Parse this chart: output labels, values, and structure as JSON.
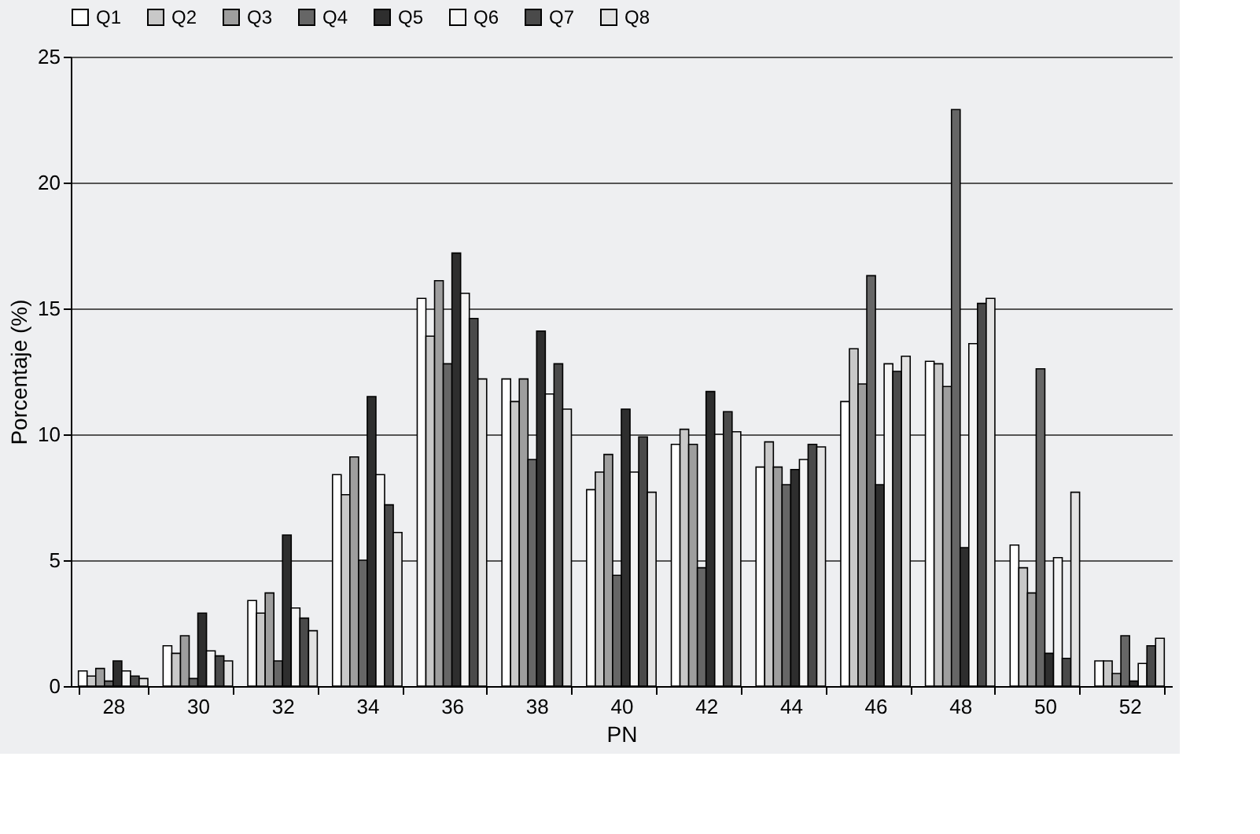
{
  "chart_data": {
    "type": "bar",
    "xlabel": "PN",
    "ylabel": "Porcentaje (%)",
    "categories": [
      "28",
      "30",
      "32",
      "34",
      "36",
      "38",
      "40",
      "42",
      "44",
      "46",
      "48",
      "50",
      "52"
    ],
    "series": [
      {
        "name": "Q1",
        "color": "#ffffff",
        "values": [
          0.6,
          1.6,
          3.4,
          8.4,
          15.4,
          12.2,
          7.8,
          9.6,
          8.7,
          11.3,
          12.9,
          5.6,
          1.0
        ]
      },
      {
        "name": "Q2",
        "color": "#c8c8c8",
        "values": [
          0.4,
          1.3,
          2.9,
          7.6,
          13.9,
          11.3,
          8.5,
          10.2,
          9.7,
          13.4,
          12.8,
          4.7,
          1.0
        ]
      },
      {
        "name": "Q3",
        "color": "#9e9e9e",
        "values": [
          0.7,
          2.0,
          3.7,
          9.1,
          16.1,
          12.2,
          9.2,
          9.6,
          8.7,
          12.0,
          11.9,
          3.7,
          0.5
        ]
      },
      {
        "name": "Q4",
        "color": "#666666",
        "values": [
          0.2,
          0.3,
          1.0,
          5.0,
          12.8,
          9.0,
          4.4,
          4.7,
          8.0,
          16.3,
          22.9,
          12.6,
          2.0
        ]
      },
      {
        "name": "Q5",
        "color": "#2e2e2e",
        "values": [
          1.0,
          2.9,
          6.0,
          11.5,
          17.2,
          14.1,
          11.0,
          11.7,
          8.6,
          8.0,
          5.5,
          1.3,
          0.2
        ]
      },
      {
        "name": "Q6",
        "color": "#f4f4f4",
        "values": [
          0.6,
          1.4,
          3.1,
          8.4,
          15.6,
          11.6,
          8.5,
          10.0,
          9.0,
          12.8,
          13.6,
          5.1,
          0.9
        ]
      },
      {
        "name": "Q7",
        "color": "#4a4a4a",
        "values": [
          0.4,
          1.2,
          2.7,
          7.2,
          14.6,
          12.8,
          9.9,
          10.9,
          9.6,
          12.5,
          15.2,
          1.1,
          1.6
        ]
      },
      {
        "name": "Q8",
        "color": "#e2e2e2",
        "values": [
          0.3,
          1.0,
          2.2,
          6.1,
          12.2,
          11.0,
          7.7,
          10.1,
          9.5,
          13.1,
          15.4,
          7.7,
          1.9
        ]
      }
    ],
    "ylim": [
      0,
      25
    ],
    "yticks": [
      0,
      5,
      10,
      15,
      20,
      25
    ],
    "grid": "y",
    "legend": "top"
  }
}
